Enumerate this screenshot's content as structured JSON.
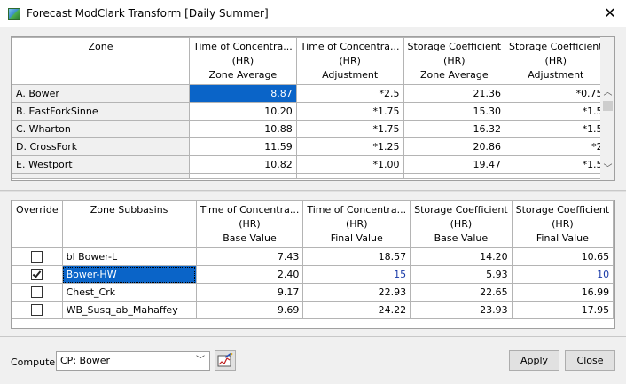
{
  "window": {
    "title": "Forecast ModClark Transform [Daily Summer]"
  },
  "zone_table": {
    "headers": [
      [
        "Zone"
      ],
      [
        "Time of Concentra...",
        "(HR)",
        "Zone Average"
      ],
      [
        "Time of Concentra...",
        "(HR)",
        "Adjustment"
      ],
      [
        "Storage Coefficient",
        "(HR)",
        "Zone Average"
      ],
      [
        "Storage Coefficient",
        "(HR)",
        "Adjustment"
      ]
    ],
    "rows": [
      [
        "A. Bower",
        "8.87",
        "*2.5",
        "21.36",
        "*0.75"
      ],
      [
        "B. EastForkSinne",
        "10.20",
        "*1.75",
        "15.30",
        "*1.5"
      ],
      [
        "C. Wharton",
        "10.88",
        "*1.75",
        "16.32",
        "*1.5"
      ],
      [
        "D. CrossFork",
        "11.59",
        "*1.25",
        "20.86",
        "*2"
      ],
      [
        "E. Westport",
        "10.82",
        "*1.00",
        "19.47",
        "*1.5"
      ]
    ],
    "scroll_fraction": 0.0
  },
  "subbasin_table": {
    "headers": [
      [
        "Override"
      ],
      [
        "Zone Subbasins"
      ],
      [
        "Time of Concentra...",
        "(HR)",
        "Base Value"
      ],
      [
        "Time of Concentra...",
        "(HR)",
        "Final Value"
      ],
      [
        "Storage Coefficient",
        "(HR)",
        "Base Value"
      ],
      [
        "Storage Coefficient",
        "(HR)",
        "Final Value"
      ]
    ],
    "rows": [
      {
        "override": false,
        "cells": [
          "bl Bower-L",
          "7.43",
          "18.57",
          "14.20",
          "10.65"
        ]
      },
      {
        "override": true,
        "cells": [
          "Bower-HW",
          "2.40",
          "15",
          "5.93",
          "10"
        ]
      },
      {
        "override": false,
        "cells": [
          "Chest_Crk",
          "9.17",
          "22.93",
          "22.65",
          "16.99"
        ]
      },
      {
        "override": false,
        "cells": [
          "WB_Susq_ab_Mahaffey",
          "9.69",
          "24.22",
          "23.93",
          "17.95"
        ]
      }
    ]
  },
  "footer": {
    "compute_label": "Compute:",
    "compute_value": "CP: Bower",
    "apply_label": "Apply",
    "close_label": "Close",
    "chart_icon": "chart-wand-icon"
  },
  "colors": {
    "selection": "#0a64c8",
    "override_value": "#1a3ba8"
  }
}
